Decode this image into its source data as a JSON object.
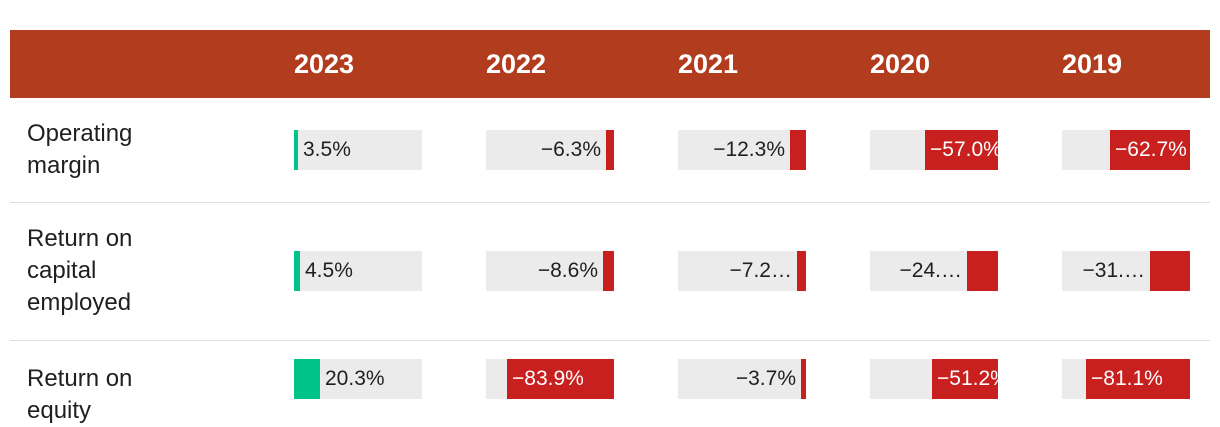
{
  "chart_data": {
    "type": "table",
    "columns": [
      "2023",
      "2022",
      "2021",
      "2020",
      "2019"
    ],
    "rows": [
      {
        "label": "Operating margin",
        "label_lines": [
          "Operating",
          "margin"
        ],
        "values": [
          3.5,
          -6.3,
          -12.3,
          -57.0,
          -62.7
        ],
        "display": [
          "3.5%",
          "−6.3%",
          "−12.3%",
          "−57.0%",
          "−62.7%"
        ]
      },
      {
        "label": "Return on capital employed",
        "label_lines": [
          "Return on",
          "capital",
          "employed"
        ],
        "values": [
          4.5,
          -8.6,
          -7.2,
          -24.0,
          -31.0
        ],
        "display": [
          "4.5%",
          "−8.6%",
          "−7.2…",
          "−24.…",
          "−31.…"
        ]
      },
      {
        "label": "Return on equity",
        "label_lines": [
          "Return on equity"
        ],
        "values": [
          20.3,
          -83.9,
          -3.7,
          -51.2,
          -81.1
        ],
        "display": [
          "20.3%",
          "−83.9%",
          "−3.7%",
          "−51.2%",
          "−81.1%"
        ]
      }
    ]
  },
  "colors": {
    "header": "#b23c1e",
    "positive": "#00c389",
    "negative": "#c8201e",
    "track": "#ebebeb"
  }
}
